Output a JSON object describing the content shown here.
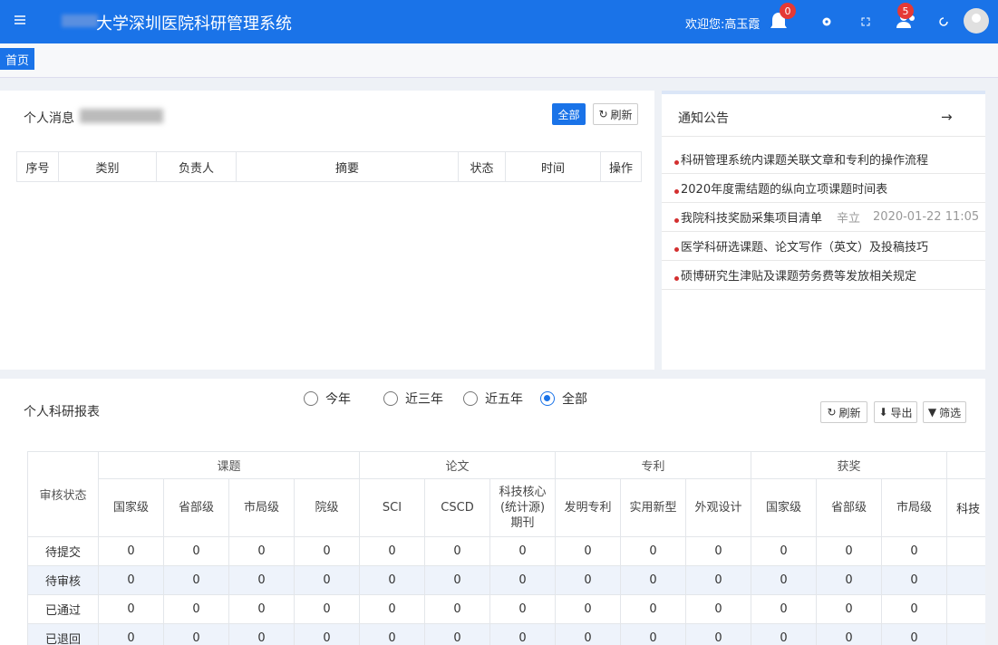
{
  "header": {
    "title": "大学深圳医院科研管理系统",
    "welcome": "欢迎您:高玉霞",
    "notification_count": 0,
    "user_count": 5
  },
  "tabs": [
    "首页"
  ],
  "messages": {
    "title": "个人消息",
    "buttons": {
      "all": "全部",
      "refresh": "刷新"
    },
    "columns": [
      "序号",
      "类别",
      "负责人",
      "摘要",
      "状态",
      "时间",
      "操作"
    ]
  },
  "notices": {
    "title": "通知公告",
    "items": [
      {
        "title": "科研管理系统内课题关联文章和专利的操作流程"
      },
      {
        "title": "2020年度需结题的纵向立项课题时间表"
      },
      {
        "title": "我院科技奖励采集项目清单",
        "author": "辛立",
        "time": "2020-01-22 11:05"
      },
      {
        "title": "医学科研选课题、论文写作（英文）及投稿技巧"
      },
      {
        "title": "硕博研究生津贴及课题劳务费等发放相关规定"
      }
    ]
  },
  "report": {
    "title": "个人科研报表",
    "range_options": [
      "今年",
      "近三年",
      "近五年",
      "全部"
    ],
    "selected_range": 3,
    "buttons": {
      "refresh": "刷新",
      "export": "导出",
      "filter": "筛选"
    },
    "row_header": "审核状态",
    "groups": [
      {
        "name": "课题",
        "columns": [
          "国家级",
          "省部级",
          "市局级",
          "院级"
        ]
      },
      {
        "name": "论文",
        "columns": [
          "SCI",
          "CSCD",
          "科技核心(统计源)期刊"
        ]
      },
      {
        "name": "专利",
        "columns": [
          "发明专利",
          "实用新型",
          "外观设计"
        ]
      },
      {
        "name": "获奖",
        "columns": [
          "国家级",
          "省部级",
          "市局级"
        ]
      }
    ],
    "truncated_column": "科技",
    "rows": [
      {
        "status": "待提交",
        "values": [
          0,
          0,
          0,
          0,
          0,
          0,
          0,
          0,
          0,
          0,
          0,
          0,
          0
        ]
      },
      {
        "status": "待审核",
        "values": [
          0,
          0,
          0,
          0,
          0,
          0,
          0,
          0,
          0,
          0,
          0,
          0,
          0
        ]
      },
      {
        "status": "已通过",
        "values": [
          0,
          0,
          0,
          0,
          0,
          0,
          0,
          0,
          0,
          0,
          0,
          0,
          0
        ]
      },
      {
        "status": "已退回",
        "values": [
          0,
          0,
          0,
          0,
          0,
          0,
          0,
          0,
          0,
          0,
          0,
          0,
          0
        ]
      }
    ]
  }
}
